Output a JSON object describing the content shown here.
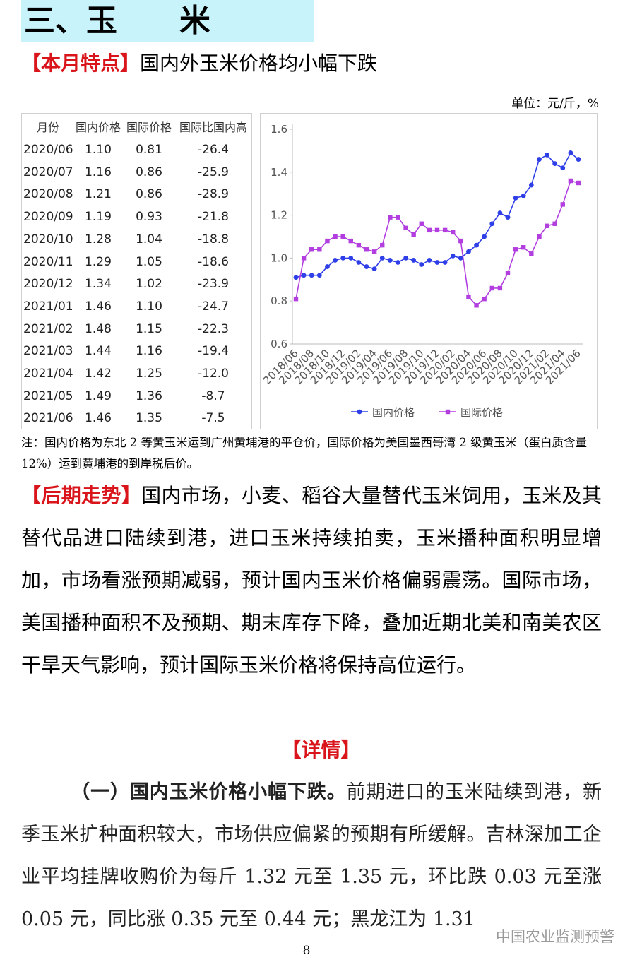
{
  "header": {
    "title": "三、玉　　米"
  },
  "summary": {
    "label": "【本月特点】",
    "text": "国内外玉米价格均小幅下跌"
  },
  "unit": "单位：元/斤，%",
  "table": {
    "columns": [
      "月份",
      "国内价格",
      "国际价格",
      "国际比国内高"
    ],
    "rows": [
      [
        "2020/06",
        "1.10",
        "0.81",
        "-26.4"
      ],
      [
        "2020/07",
        "1.16",
        "0.86",
        "-25.9"
      ],
      [
        "2020/08",
        "1.21",
        "0.86",
        "-28.9"
      ],
      [
        "2020/09",
        "1.19",
        "0.93",
        "-21.8"
      ],
      [
        "2020/10",
        "1.28",
        "1.04",
        "-18.8"
      ],
      [
        "2020/11",
        "1.29",
        "1.05",
        "-18.6"
      ],
      [
        "2020/12",
        "1.34",
        "1.02",
        "-23.9"
      ],
      [
        "2021/01",
        "1.46",
        "1.10",
        "-24.7"
      ],
      [
        "2021/02",
        "1.48",
        "1.15",
        "-22.3"
      ],
      [
        "2021/03",
        "1.44",
        "1.16",
        "-19.4"
      ],
      [
        "2021/04",
        "1.42",
        "1.25",
        "-12.0"
      ],
      [
        "2021/05",
        "1.49",
        "1.36",
        "-8.7"
      ],
      [
        "2021/06",
        "1.46",
        "1.35",
        "-7.5"
      ]
    ]
  },
  "chart_data": {
    "type": "line",
    "categories": [
      "2018/06",
      null,
      "2018/08",
      null,
      "2018/10",
      null,
      "2018/12",
      null,
      "2019/02",
      null,
      "2019/04",
      null,
      "2019/06",
      null,
      "2019/08",
      null,
      "2019/10",
      null,
      "2019/12",
      null,
      "2020/02",
      null,
      "2020/04",
      null,
      "2020/06",
      null,
      "2020/08",
      null,
      "2020/10",
      null,
      "2020/12",
      null,
      "2021/02",
      null,
      "2021/04",
      null,
      "2021/06"
    ],
    "series": [
      {
        "name": "国内价格",
        "color": "#2f3fe8",
        "marker": "circle",
        "values": [
          0.91,
          0.92,
          0.92,
          0.92,
          0.96,
          0.99,
          1.0,
          1.0,
          0.98,
          0.96,
          0.95,
          1.0,
          0.99,
          0.98,
          1.0,
          0.99,
          0.97,
          0.99,
          0.98,
          0.98,
          1.01,
          1.0,
          1.03,
          1.06,
          1.1,
          1.16,
          1.21,
          1.19,
          1.28,
          1.29,
          1.34,
          1.46,
          1.48,
          1.44,
          1.42,
          1.49,
          1.46
        ]
      },
      {
        "name": "国际价格",
        "color": "#b23ee0",
        "marker": "square",
        "values": [
          0.81,
          1.0,
          1.04,
          1.04,
          1.08,
          1.1,
          1.1,
          1.08,
          1.06,
          1.04,
          1.03,
          1.06,
          1.19,
          1.19,
          1.14,
          1.11,
          1.16,
          1.13,
          1.13,
          1.13,
          1.12,
          1.08,
          0.82,
          0.78,
          0.81,
          0.86,
          0.86,
          0.93,
          1.04,
          1.05,
          1.02,
          1.1,
          1.15,
          1.16,
          1.25,
          1.36,
          1.35
        ]
      }
    ],
    "ylim": [
      0.6,
      1.6
    ],
    "yticks": [
      0.6,
      0.8,
      {
        "value": 1,
        "label": "1.0"
      },
      1.2,
      1.4,
      1.6
    ],
    "legend": "bottom"
  },
  "note": "注：国内价格为东北 2 等黄玉米运到广州黄埔港的平仓价，国际价格为美国墨西哥湾 2 级黄玉米（蛋白质含量 12%）运到黄埔港的到岸税后价。",
  "outlook": {
    "label": "【后期走势】",
    "text": "国内市场，小麦、稻谷大量替代玉米饲用，玉米及其替代品进口陆续到港，进口玉米持续拍卖，玉米播种面积明显增加，市场看涨预期减弱，预计国内玉米价格偏弱震荡。国际市场，美国播种面积不及预期、期末库存下降，叠加近期北美和南美农区干旱天气影响，预计国际玉米价格将保持高位运行。"
  },
  "details": {
    "heading": "【详情】",
    "lead": "（一）国内玉米价格小幅下跌。",
    "text": "前期进口的玉米陆续到港，新季玉米扩种面积较大，市场供应偏紧的预期有所缓解。吉林深加工企业平均挂牌收购价为每斤 1.32 元至 1.35 元，环比跌 0.03 元至涨 0.05 元，同比涨 0.35 元至 0.44 元；黑龙江为 1.31"
  },
  "page_number": "8",
  "watermark": "中国农业监测预警"
}
